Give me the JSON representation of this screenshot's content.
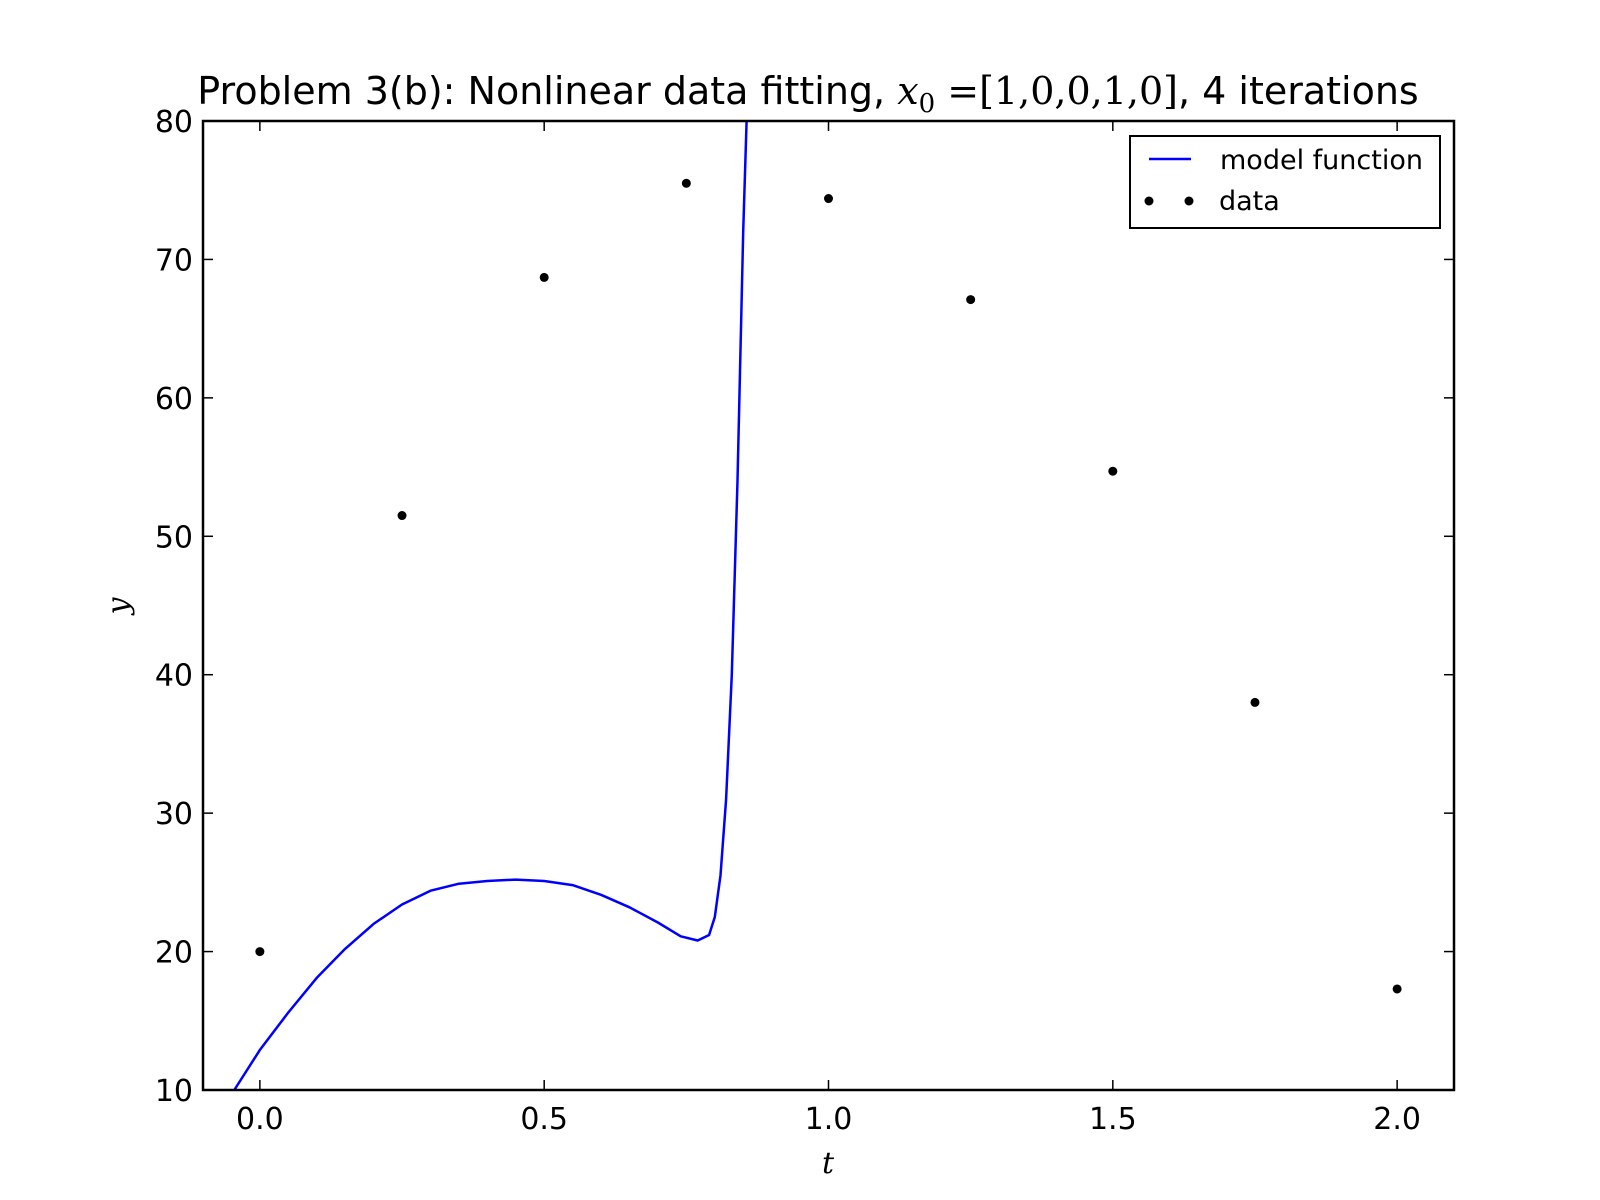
{
  "chart_data": {
    "type": "line",
    "title": {
      "prefix": "Problem 3(b): Nonlinear data fitting, ",
      "math_var": "x",
      "math_sub": "0",
      "math_eq": " =[1,0,0,1,0]",
      "suffix": ", 4 iterations"
    },
    "xlabel": "t",
    "ylabel": "y",
    "xlim": [
      -0.1,
      2.1
    ],
    "ylim": [
      10,
      80
    ],
    "xticks": [
      0.0,
      0.5,
      1.0,
      1.5,
      2.0
    ],
    "xtick_labels": [
      "0.0",
      "0.5",
      "1.0",
      "1.5",
      "2.0"
    ],
    "yticks": [
      10,
      20,
      30,
      40,
      50,
      60,
      70,
      80
    ],
    "ytick_labels": [
      "10",
      "20",
      "30",
      "40",
      "50",
      "60",
      "70",
      "80"
    ],
    "grid": false,
    "legend_position": "top-right",
    "series": [
      {
        "name": "model function",
        "kind": "line",
        "color": "#0000ff",
        "x": [
          -0.045,
          0.0,
          0.05,
          0.1,
          0.15,
          0.2,
          0.25,
          0.3,
          0.35,
          0.4,
          0.45,
          0.5,
          0.55,
          0.6,
          0.65,
          0.7,
          0.74,
          0.77,
          0.79,
          0.8,
          0.81,
          0.82,
          0.83,
          0.84,
          0.85,
          0.856
        ],
        "y": [
          10.0,
          12.9,
          15.6,
          18.1,
          20.2,
          22.0,
          23.4,
          24.4,
          24.9,
          25.1,
          25.2,
          25.1,
          24.8,
          24.1,
          23.2,
          22.1,
          21.1,
          20.8,
          21.2,
          22.5,
          25.5,
          31.0,
          40.0,
          54.0,
          72.0,
          80.0
        ]
      },
      {
        "name": "data",
        "kind": "scatter",
        "color": "#000000",
        "x": [
          0.0,
          0.25,
          0.5,
          0.75,
          1.0,
          1.25,
          1.5,
          1.75,
          2.0
        ],
        "y": [
          20.0,
          51.5,
          68.7,
          75.5,
          74.4,
          67.1,
          54.7,
          38.0,
          17.3
        ]
      }
    ]
  }
}
